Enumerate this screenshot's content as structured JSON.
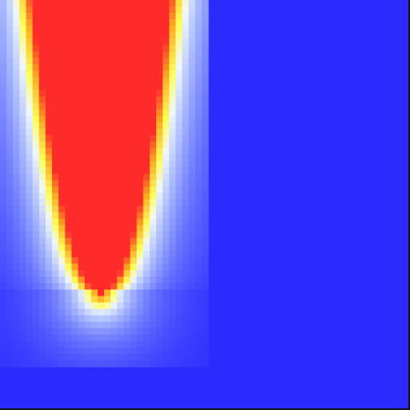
{
  "chart_data": {
    "type": "heatmap",
    "title": "",
    "xlabel": "",
    "ylabel": "",
    "grid": false,
    "legend": "none",
    "colormap": {
      "stops": [
        {
          "at": 0.0,
          "color": "#2b2bff"
        },
        {
          "at": 0.16,
          "color": "#6f7bff"
        },
        {
          "at": 0.3,
          "color": "#b8c8ff"
        },
        {
          "at": 0.38,
          "color": "#eef6ff"
        },
        {
          "at": 0.44,
          "color": "#ffff55"
        },
        {
          "at": 0.52,
          "color": "#ffb020"
        },
        {
          "at": 0.6,
          "color": "#ff2b2b"
        },
        {
          "at": 1.0,
          "color": "#ff2b2b"
        }
      ]
    },
    "background_color": "#2b2bff",
    "field": {
      "cols": 32,
      "rows": 57,
      "center_col": 15.5,
      "apex_row": 45,
      "half_width_top": 10.5,
      "top_row": 0,
      "peak": 1.0
    }
  }
}
